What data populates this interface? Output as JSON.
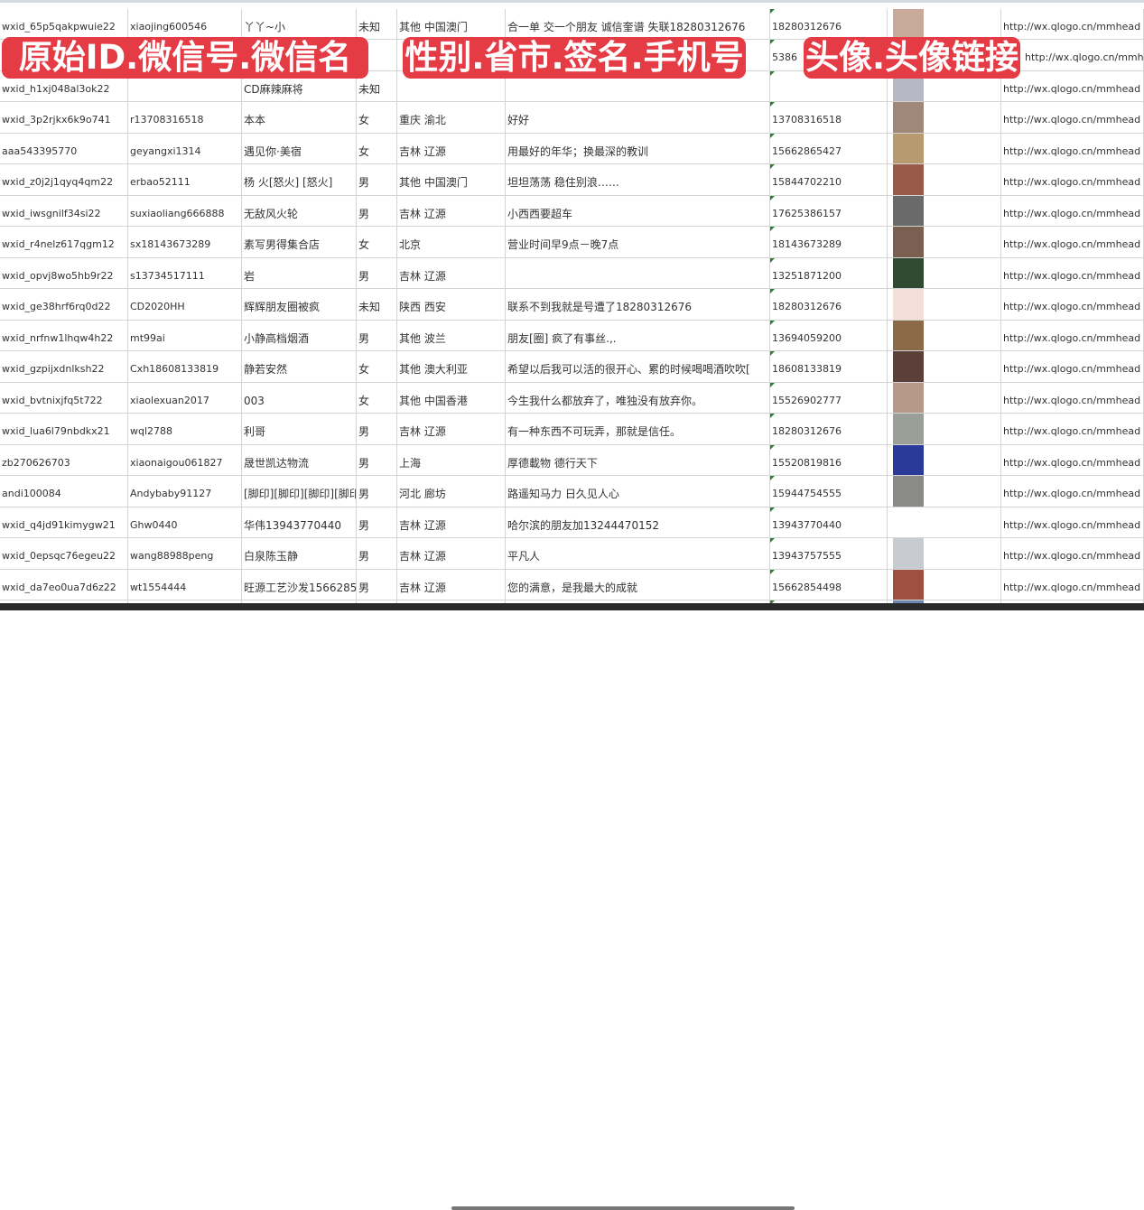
{
  "banners": [
    "原始ID.微信号.微信名",
    "性别.省市.签名.手机号",
    "头像.头像链接"
  ],
  "rows": [
    {
      "id": "wxid_65p5qakpwuie22",
      "wx": "xiaojing600546",
      "name": "丫丫~小",
      "sex": "未知",
      "region": "其他 中国澳门",
      "sig": "合一单 交一个朋友 诚信奎谱 失联18280312676",
      "phone": "18280312676",
      "avatar": "#c9a99a",
      "url": "http://wx.qlogo.cn/mmhead"
    },
    {
      "id": "",
      "wx": "",
      "name": "",
      "sex": "",
      "region": "",
      "sig": "",
      "phone": "5386",
      "avatar": "#8aa0c0",
      "url": "http://wx.qlogo.cn/mmhead"
    },
    {
      "id": "wxid_h1xj048al3ok22",
      "wx": "",
      "name": "CD麻辣麻将",
      "sex": "未知",
      "region": "",
      "sig": "",
      "phone": "",
      "avatar": "#b8b8c4",
      "url": "http://wx.qlogo.cn/mmhead"
    },
    {
      "id": "wxid_3p2rjkx6k9o741",
      "wx": "r13708316518",
      "name": "本本",
      "sex": "女",
      "region": "重庆 渝北",
      "sig": "好好",
      "phone": "13708316518",
      "avatar": "#a08878",
      "url": "http://wx.qlogo.cn/mmhead"
    },
    {
      "id": "aaa543395770",
      "wx": "geyangxi1314",
      "name": "遇见你·美宿",
      "sex": "女",
      "region": "吉林 辽源",
      "sig": "用最好的年华；换最深的教训",
      "phone": "15662865427",
      "avatar": "#b89a70",
      "url": "http://wx.qlogo.cn/mmhead"
    },
    {
      "id": "wxid_z0j2j1qyq4qm22",
      "wx": "erbao52111",
      "name": "杨 火[怒火] [怒火]",
      "sex": "男",
      "region": "其他 中国澳门",
      "sig": "坦坦荡荡 稳住别浪……",
      "phone": "15844702210",
      "avatar": "#9a5a48",
      "url": "http://wx.qlogo.cn/mmhead"
    },
    {
      "id": "wxid_iwsgnilf34si22",
      "wx": "suxiaoliang666888",
      "name": "无敌风火轮",
      "sex": "男",
      "region": "吉林 辽源",
      "sig": "小西西要超车",
      "phone": "17625386157",
      "avatar": "#6a6a6a",
      "url": "http://wx.qlogo.cn/mmhead"
    },
    {
      "id": "wxid_r4nelz617qgm12",
      "wx": "sx18143673289",
      "name": "素写男得集合店",
      "sex": "女",
      "region": "北京",
      "sig": "营业时间早9点－晚7点",
      "phone": "18143673289",
      "avatar": "#7a6050",
      "url": "http://wx.qlogo.cn/mmhead"
    },
    {
      "id": "wxid_opvj8wo5hb9r22",
      "wx": "s13734517111",
      "name": "岩",
      "sex": "男",
      "region": "吉林 辽源",
      "sig": "",
      "phone": "13251871200",
      "avatar": "#2e4a30",
      "url": "http://wx.qlogo.cn/mmhead"
    },
    {
      "id": "wxid_ge38hrf6rq0d22",
      "wx": "CD2020HH",
      "name": "辉辉朋友圈被疯",
      "sex": "未知",
      "region": "陕西 西安",
      "sig": "联系不到我就是号遭了18280312676",
      "phone": "18280312676",
      "avatar": "#f4e0d8",
      "url": "http://wx.qlogo.cn/mmhead"
    },
    {
      "id": "wxid_nrfnw1lhqw4h22",
      "wx": "mt99ai",
      "name": "小静高档烟酒",
      "sex": "男",
      "region": "其他 波兰",
      "sig": "朋友[圈] 疯了有事丝.,.",
      "phone": "13694059200",
      "avatar": "#8a6a48",
      "url": "http://wx.qlogo.cn/mmhead"
    },
    {
      "id": "wxid_gzpijxdnlksh22",
      "wx": "Cxh18608133819",
      "name": "静若安然",
      "sex": "女",
      "region": "其他 澳大利亚",
      "sig": "希望以后我可以活的很开心、累的时候喝喝酒吹吹[",
      "phone": "18608133819",
      "avatar": "#5a4038",
      "url": "http://wx.qlogo.cn/mmhead"
    },
    {
      "id": "wxid_bvtnixjfq5t722",
      "wx": "xiaolexuan2017",
      "name": "003",
      "sex": "女",
      "region": "其他 中国香港",
      "sig": "今生我什么都放弃了，唯独没有放弃你。",
      "phone": "15526902777",
      "avatar": "#b89888",
      "url": "http://wx.qlogo.cn/mmhead"
    },
    {
      "id": "wxid_lua6l79nbdkx21",
      "wx": "wql2788",
      "name": "利哥",
      "sex": "男",
      "region": "吉林 辽源",
      "sig": "有一种东西不可玩弄，那就是信任。",
      "phone": "18280312676",
      "avatar": "#9aa098",
      "url": "http://wx.qlogo.cn/mmhead"
    },
    {
      "id": "zb270626703",
      "wx": "xiaonaigou061827",
      "name": "晟世凯达物流",
      "sex": "男",
      "region": "上海",
      "sig": "厚德載物 德行天下",
      "phone": "15520819816",
      "avatar": "#2a3a9a",
      "url": "http://wx.qlogo.cn/mmhead"
    },
    {
      "id": "andi100084",
      "wx": "Andybaby91127",
      "name": "[脚印][脚印][脚印][脚印]",
      "sex": "男",
      "region": "河北 廊坊",
      "sig": "路遥知马力 日久见人心",
      "phone": "15944754555",
      "avatar": "#8a8a88",
      "url": "http://wx.qlogo.cn/mmhead"
    },
    {
      "id": "wxid_q4jd91kimygw21",
      "wx": "Ghw0440",
      "name": "华伟13943770440",
      "sex": "男",
      "region": "吉林 辽源",
      "sig": "哈尔滨的朋友加13244470152",
      "phone": "13943770440",
      "avatar": "#ffffff",
      "url": "http://wx.qlogo.cn/mmhead"
    },
    {
      "id": "wxid_0epsqc76egeu22",
      "wx": "wang88988peng",
      "name": "白泉陈玉静",
      "sex": "男",
      "region": "吉林 辽源",
      "sig": "平凡人",
      "phone": "13943757555",
      "avatar": "#c8ccd0",
      "url": "http://wx.qlogo.cn/mmhead"
    },
    {
      "id": "wxid_da7eo0ua7d6z22",
      "wx": "wt1554444",
      "name": "旺源工艺沙发15662854",
      "sex": "男",
      "region": "吉林 辽源",
      "sig": "您的满意，是我最大的成就",
      "phone": "15662854498",
      "avatar": "#a05040",
      "url": "http://wx.qlogo.cn/mmhead"
    },
    {
      "id": "",
      "wx": "",
      "name": "",
      "sex": "",
      "region": "",
      "sig": "",
      "phone": "",
      "avatar": "#6a88b0",
      "url": ""
    }
  ]
}
